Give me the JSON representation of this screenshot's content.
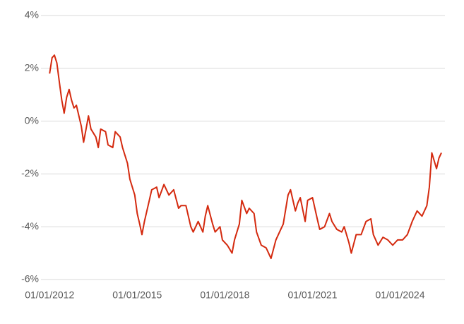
{
  "chart_data": {
    "type": "line",
    "x": [
      "2012-01-01",
      "2012-02-01",
      "2012-03-01",
      "2012-04-01",
      "2012-05-01",
      "2012-06-01",
      "2012-07-01",
      "2012-08-01",
      "2012-09-01",
      "2012-10-01",
      "2012-11-01",
      "2012-12-01",
      "2013-02-01",
      "2013-03-01",
      "2013-04-01",
      "2013-05-01",
      "2013-06-01",
      "2013-08-01",
      "2013-09-01",
      "2013-10-01",
      "2013-12-01",
      "2014-01-01",
      "2014-03-01",
      "2014-04-01",
      "2014-06-01",
      "2014-07-01",
      "2014-09-01",
      "2014-10-01",
      "2014-12-01",
      "2015-01-01",
      "2015-02-01",
      "2015-03-01",
      "2015-04-01",
      "2015-06-01",
      "2015-07-01",
      "2015-09-01",
      "2015-10-01",
      "2015-12-01",
      "2016-02-01",
      "2016-04-01",
      "2016-06-01",
      "2016-07-01",
      "2016-09-01",
      "2016-11-01",
      "2016-12-01",
      "2017-02-01",
      "2017-04-01",
      "2017-05-01",
      "2017-06-01",
      "2017-08-01",
      "2017-09-01",
      "2017-11-01",
      "2017-12-01",
      "2018-02-01",
      "2018-04-01",
      "2018-05-01",
      "2018-07-01",
      "2018-08-01",
      "2018-10-01",
      "2018-11-01",
      "2019-01-01",
      "2019-02-01",
      "2019-04-01",
      "2019-06-01",
      "2019-08-01",
      "2019-10-01",
      "2019-12-01",
      "2020-01-01",
      "2020-03-01",
      "2020-04-01",
      "2020-06-01",
      "2020-07-01",
      "2020-08-01",
      "2020-10-01",
      "2020-11-01",
      "2021-01-01",
      "2021-03-01",
      "2021-04-01",
      "2021-06-01",
      "2021-08-01",
      "2021-09-01",
      "2021-11-01",
      "2022-01-01",
      "2022-02-01",
      "2022-04-01",
      "2022-05-01",
      "2022-07-01",
      "2022-09-01",
      "2022-11-01",
      "2023-01-01",
      "2023-02-01",
      "2023-04-01",
      "2023-06-01",
      "2023-08-01",
      "2023-10-01",
      "2023-12-01",
      "2024-02-01",
      "2024-04-01",
      "2024-06-01",
      "2024-08-01",
      "2024-10-01",
      "2024-12-01",
      "2025-01-01",
      "2025-02-01",
      "2025-04-01",
      "2025-05-01",
      "2025-06-01"
    ],
    "series": [
      {
        "color": "#d42a0f",
        "values": [
          1.8,
          2.4,
          2.5,
          2.2,
          1.5,
          0.8,
          0.3,
          0.9,
          1.2,
          0.8,
          0.5,
          0.6,
          -0.2,
          -0.8,
          -0.3,
          0.2,
          -0.3,
          -0.6,
          -1.0,
          -0.3,
          -0.4,
          -0.9,
          -1.0,
          -0.4,
          -0.6,
          -1.0,
          -1.6,
          -2.2,
          -2.8,
          -3.5,
          -3.9,
          -4.3,
          -3.8,
          -3.0,
          -2.6,
          -2.5,
          -2.9,
          -2.4,
          -2.8,
          -2.6,
          -3.3,
          -3.2,
          -3.2,
          -4.0,
          -4.2,
          -3.8,
          -4.2,
          -3.6,
          -3.2,
          -3.9,
          -4.2,
          -4.0,
          -4.5,
          -4.7,
          -5.0,
          -4.5,
          -3.9,
          -3.0,
          -3.5,
          -3.3,
          -3.5,
          -4.2,
          -4.7,
          -4.8,
          -5.2,
          -4.5,
          -4.1,
          -3.9,
          -2.8,
          -2.6,
          -3.4,
          -3.1,
          -2.9,
          -3.8,
          -3.0,
          -2.9,
          -3.7,
          -4.1,
          -4.0,
          -3.5,
          -3.8,
          -4.1,
          -4.2,
          -4.0,
          -4.6,
          -5.0,
          -4.3,
          -4.3,
          -3.8,
          -3.7,
          -4.3,
          -4.7,
          -4.4,
          -4.5,
          -4.7,
          -4.5,
          -4.5,
          -4.3,
          -3.8,
          -3.4,
          -3.6,
          -3.2,
          -2.5,
          -1.2,
          -1.8,
          -1.4,
          -1.2
        ]
      }
    ],
    "xlim": [
      "2011-09-15",
      "2025-07-15"
    ],
    "xticks": [
      {
        "value": "2012-01-01",
        "label": "01/01/2012"
      },
      {
        "value": "2015-01-01",
        "label": "01/01/2015"
      },
      {
        "value": "2018-01-01",
        "label": "01/01/2018"
      },
      {
        "value": "2021-01-01",
        "label": "01/01/2021"
      },
      {
        "value": "2024-01-01",
        "label": "01/01/2024"
      }
    ],
    "ylim": [
      -6,
      4
    ],
    "yticks": [
      {
        "value": -6,
        "label": "-6%"
      },
      {
        "value": -4,
        "label": "-4%"
      },
      {
        "value": -2,
        "label": "-2%"
      },
      {
        "value": 0,
        "label": "0%"
      },
      {
        "value": 2,
        "label": "2%"
      },
      {
        "value": 4,
        "label": "4%"
      }
    ],
    "grid": true
  }
}
